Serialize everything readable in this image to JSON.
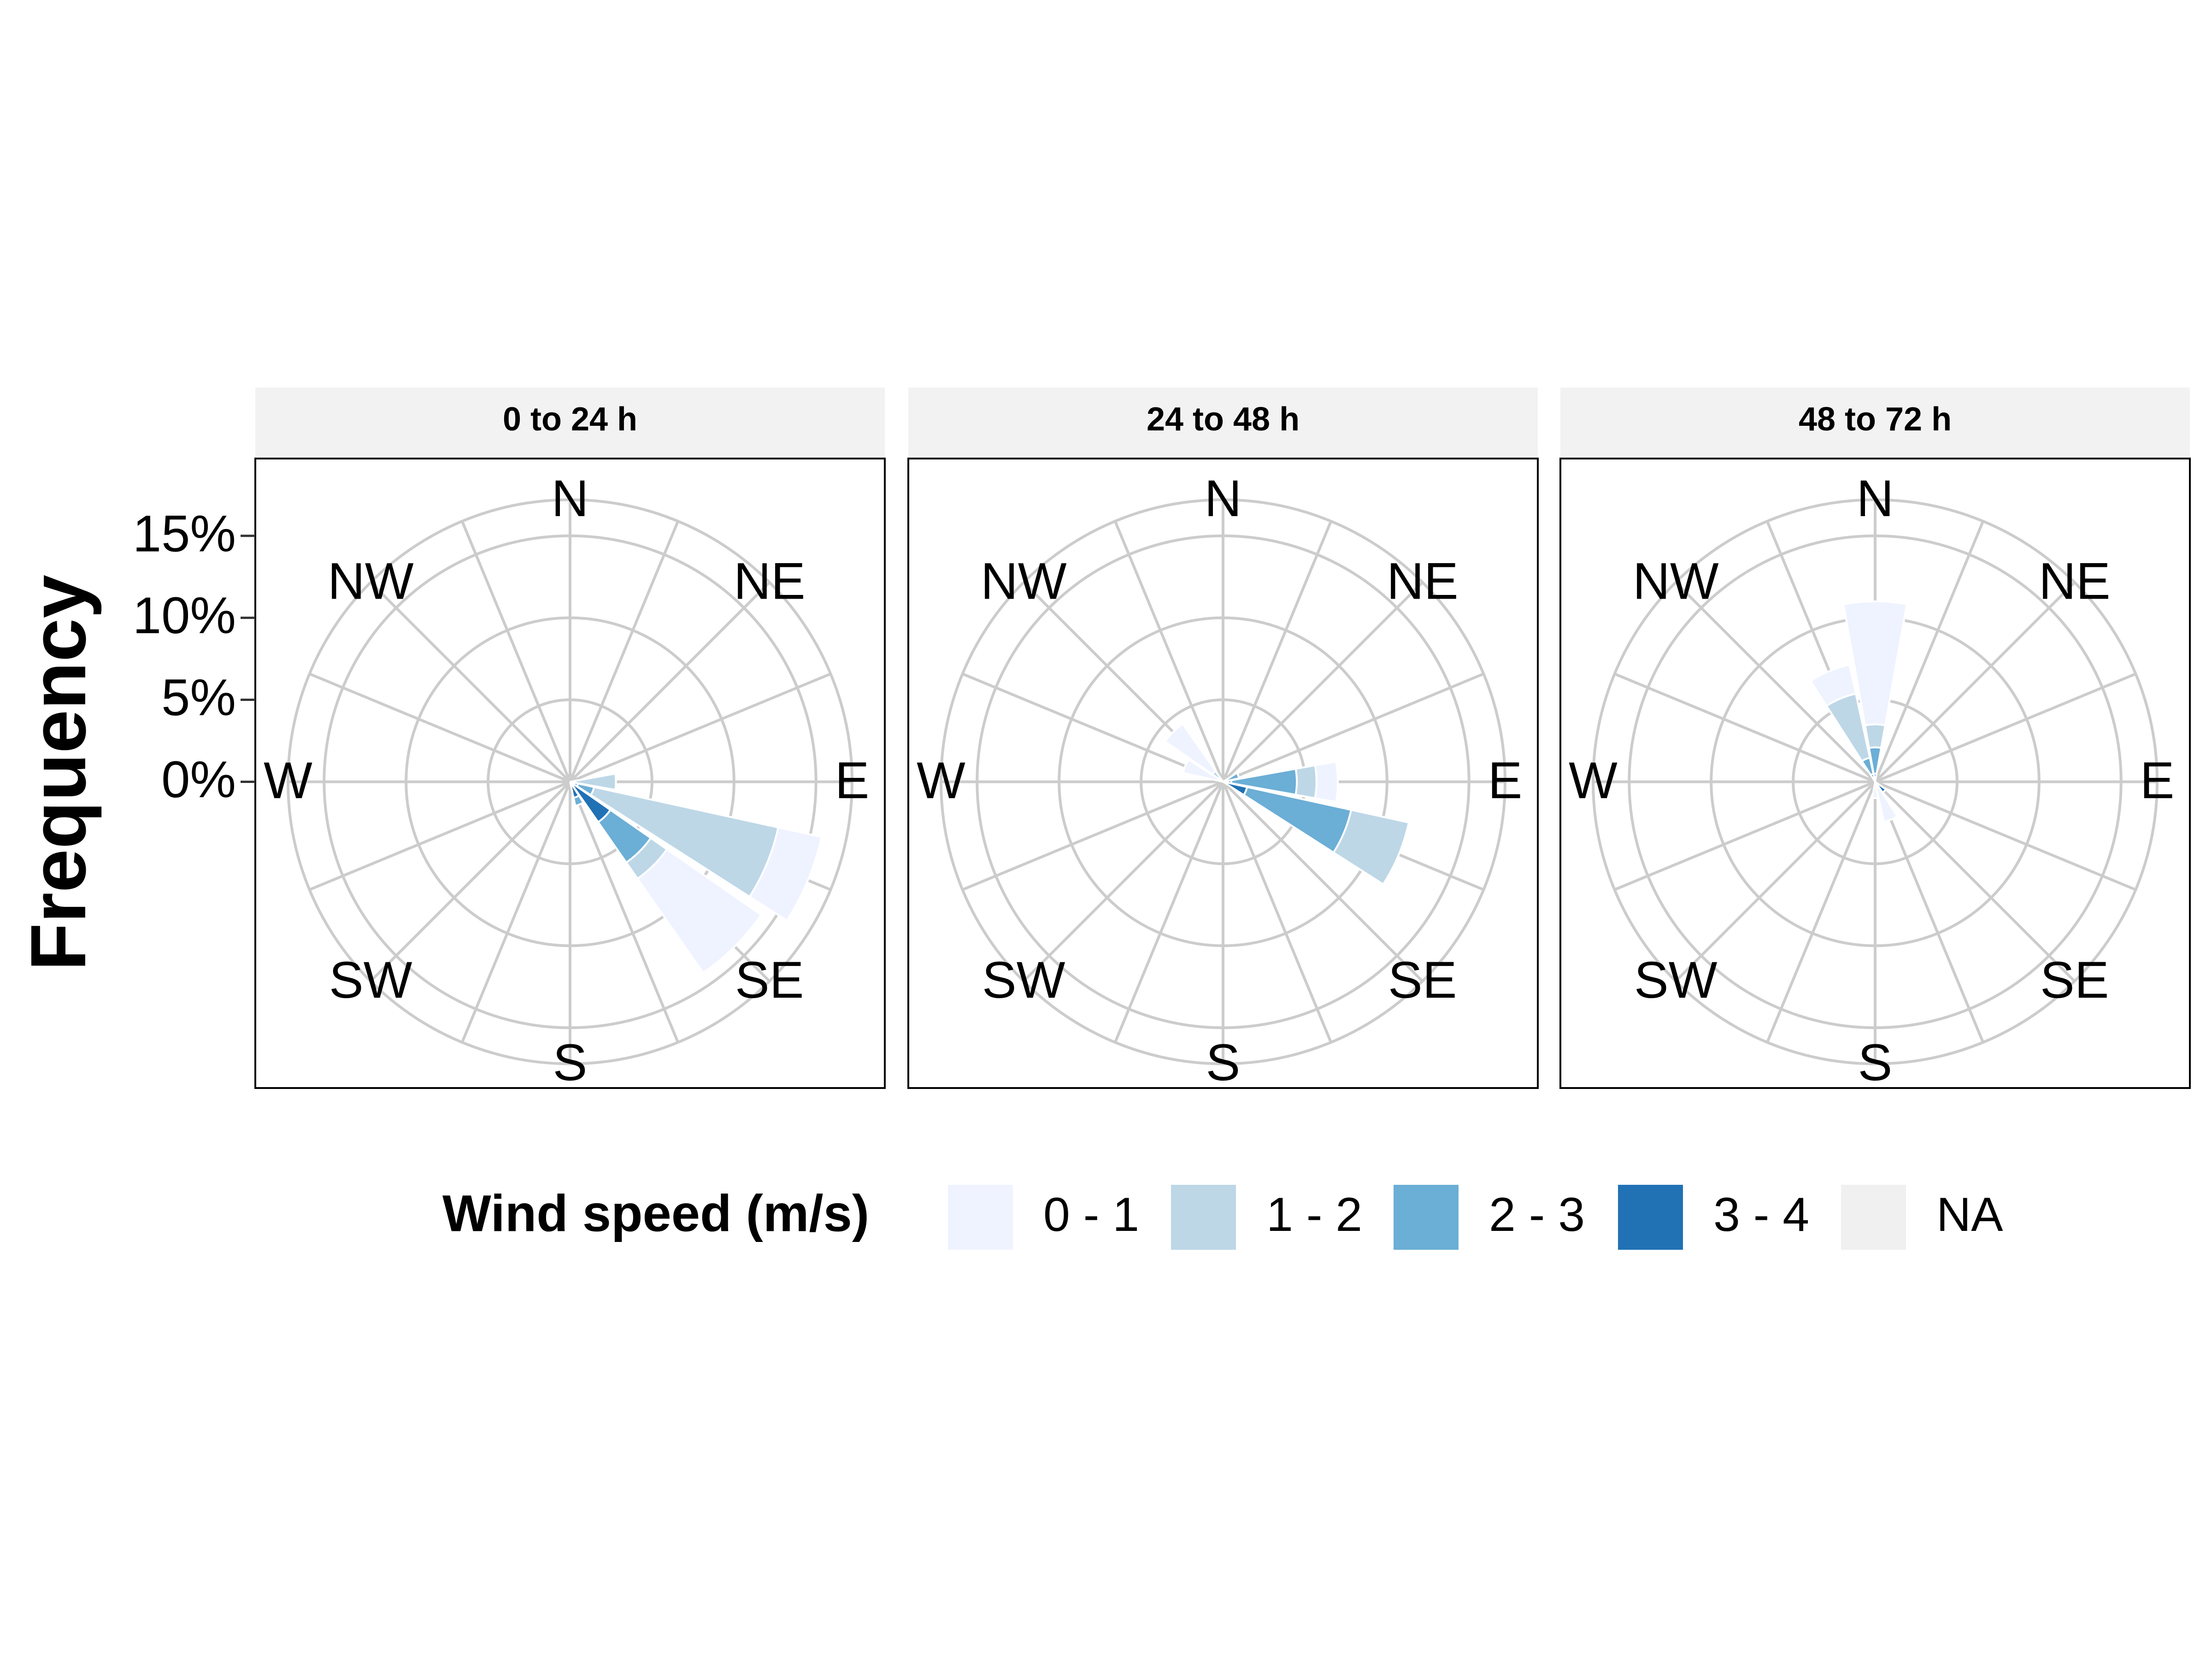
{
  "y_label": "Frequency",
  "legend_title": "Wind speed (m/s)",
  "chart_data": [
    {
      "type": "windrose",
      "title": "0 to 24 h",
      "categories": [
        "N",
        null,
        "NE",
        null,
        "E",
        null,
        "SE",
        null,
        "S",
        null,
        "SW",
        null,
        "W",
        null,
        "NW",
        null
      ],
      "ylim": [
        0,
        17.2
      ],
      "yticks": [
        {
          "value": 0,
          "label": "0%"
        },
        {
          "value": 5,
          "label": "5%"
        },
        {
          "value": 10,
          "label": "10%"
        },
        {
          "value": 15,
          "label": "15%"
        }
      ],
      "grid": true,
      "series": [
        {
          "name": "0 - 1",
          "color": "#eff3ff",
          "values": [
            0,
            0,
            0,
            0,
            0,
            2.7,
            7.0,
            0,
            0,
            0,
            0,
            0,
            0,
            0,
            0,
            0
          ]
        },
        {
          "name": "1 - 2",
          "color": "#bdd7e7",
          "values": [
            0,
            0,
            0,
            0,
            2.8,
            11.5,
            1.2,
            0,
            0,
            0,
            0,
            0,
            0,
            0,
            0,
            0
          ]
        },
        {
          "name": "2 - 3",
          "color": "#6baed6",
          "values": [
            0,
            0,
            0,
            0,
            0,
            1.0,
            3.0,
            0.5,
            0,
            0,
            0,
            0,
            0,
            0,
            0,
            0
          ]
        },
        {
          "name": "3 - 4",
          "color": "#2171b5",
          "values": [
            0,
            0,
            0,
            0,
            0,
            0.5,
            3.0,
            1.0,
            0,
            0,
            0,
            0,
            0,
            0,
            0,
            0
          ]
        },
        {
          "name": "NA",
          "color": "#f0f0f0",
          "values": [
            null,
            null,
            null,
            null,
            null,
            null,
            null,
            null,
            null,
            null,
            null,
            null,
            null,
            null,
            null,
            null
          ]
        }
      ]
    },
    {
      "type": "windrose",
      "title": "24 to 48 h",
      "categories": [
        "N",
        null,
        "NE",
        null,
        "E",
        null,
        "SE",
        null,
        "S",
        null,
        "SW",
        null,
        "W",
        null,
        "NW",
        null
      ],
      "ylim": [
        0,
        17.2
      ],
      "yticks": [
        {
          "value": 0,
          "label": "0%"
        },
        {
          "value": 5,
          "label": "5%"
        },
        {
          "value": 10,
          "label": "10%"
        },
        {
          "value": 15,
          "label": "15%"
        }
      ],
      "grid": true,
      "series": [
        {
          "name": "0 - 1",
          "color": "#eff3ff",
          "values": [
            0,
            0,
            0,
            0,
            1.3,
            0,
            0,
            0,
            0,
            0,
            0,
            0,
            0,
            2.5,
            3.5,
            0
          ]
        },
        {
          "name": "1 - 2",
          "color": "#bdd7e7",
          "values": [
            0,
            0,
            0,
            0,
            1.2,
            3.6,
            0,
            0,
            0,
            0,
            0,
            0,
            0,
            0,
            0.8,
            0
          ]
        },
        {
          "name": "2 - 3",
          "color": "#6baed6",
          "values": [
            0,
            0,
            0,
            1.0,
            4.0,
            6.5,
            0,
            0,
            0,
            0,
            0,
            0,
            0,
            0,
            0,
            0
          ]
        },
        {
          "name": "3 - 4",
          "color": "#2171b5",
          "values": [
            0,
            0,
            0,
            0,
            0.5,
            1.5,
            0,
            0,
            0,
            0,
            0,
            0,
            0,
            0,
            0,
            0
          ]
        },
        {
          "name": "NA",
          "color": "#f0f0f0",
          "values": [
            null,
            null,
            null,
            null,
            null,
            null,
            null,
            null,
            null,
            null,
            null,
            null,
            null,
            null,
            null,
            null
          ]
        }
      ]
    },
    {
      "type": "windrose",
      "title": "48 to 72 h",
      "categories": [
        "N",
        null,
        "NE",
        null,
        "E",
        null,
        "SE",
        null,
        "S",
        null,
        "SW",
        null,
        "W",
        null,
        "NW",
        null
      ],
      "ylim": [
        0,
        17.2
      ],
      "yticks": [
        {
          "value": 0,
          "label": "0%"
        },
        {
          "value": 5,
          "label": "5%"
        },
        {
          "value": 10,
          "label": "10%"
        },
        {
          "value": 15,
          "label": "15%"
        }
      ],
      "grid": true,
      "series": [
        {
          "name": "0 - 1",
          "color": "#eff3ff",
          "values": [
            7.5,
            0,
            0,
            0,
            0,
            0,
            0,
            2.5,
            1.0,
            0,
            0,
            0,
            0,
            0,
            0,
            1.8
          ]
        },
        {
          "name": "1 - 2",
          "color": "#bdd7e7",
          "values": [
            1.4,
            0,
            0,
            0,
            0,
            0,
            0,
            0,
            0,
            0,
            0,
            0,
            0,
            0,
            0,
            4.0
          ]
        },
        {
          "name": "2 - 3",
          "color": "#6baed6",
          "values": [
            1.6,
            0,
            0,
            0,
            0,
            0,
            0,
            0,
            0,
            0,
            0,
            0,
            0,
            0,
            0,
            1.0
          ]
        },
        {
          "name": "3 - 4",
          "color": "#2171b5",
          "values": [
            0.5,
            0,
            0,
            0,
            0,
            0,
            0.8,
            0,
            0,
            0,
            0,
            0,
            0,
            0,
            0,
            0.5
          ]
        },
        {
          "name": "NA",
          "color": "#f0f0f0",
          "values": [
            null,
            null,
            null,
            null,
            null,
            null,
            null,
            null,
            null,
            null,
            null,
            null,
            null,
            null,
            null,
            null
          ]
        }
      ]
    }
  ]
}
